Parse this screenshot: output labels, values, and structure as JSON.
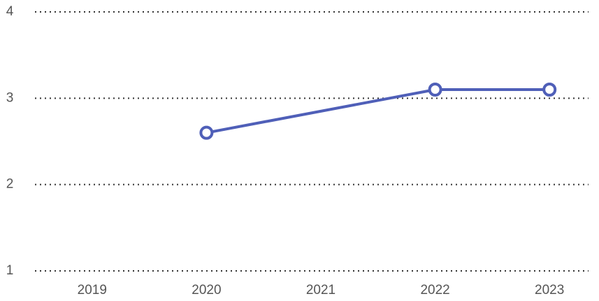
{
  "chart_data": {
    "type": "line",
    "x": [
      2020,
      2022,
      2023
    ],
    "series": [
      {
        "color": "#4f5fb8",
        "values": [
          2.6,
          3.1,
          3.1
        ]
      }
    ],
    "xlim": [
      2018.5,
      2023.5
    ],
    "xticks": [
      2019,
      2020,
      2021,
      2022,
      2023
    ],
    "ylim": [
      1,
      4
    ],
    "yticks": [
      1,
      2,
      3,
      4
    ],
    "grid": true
  }
}
